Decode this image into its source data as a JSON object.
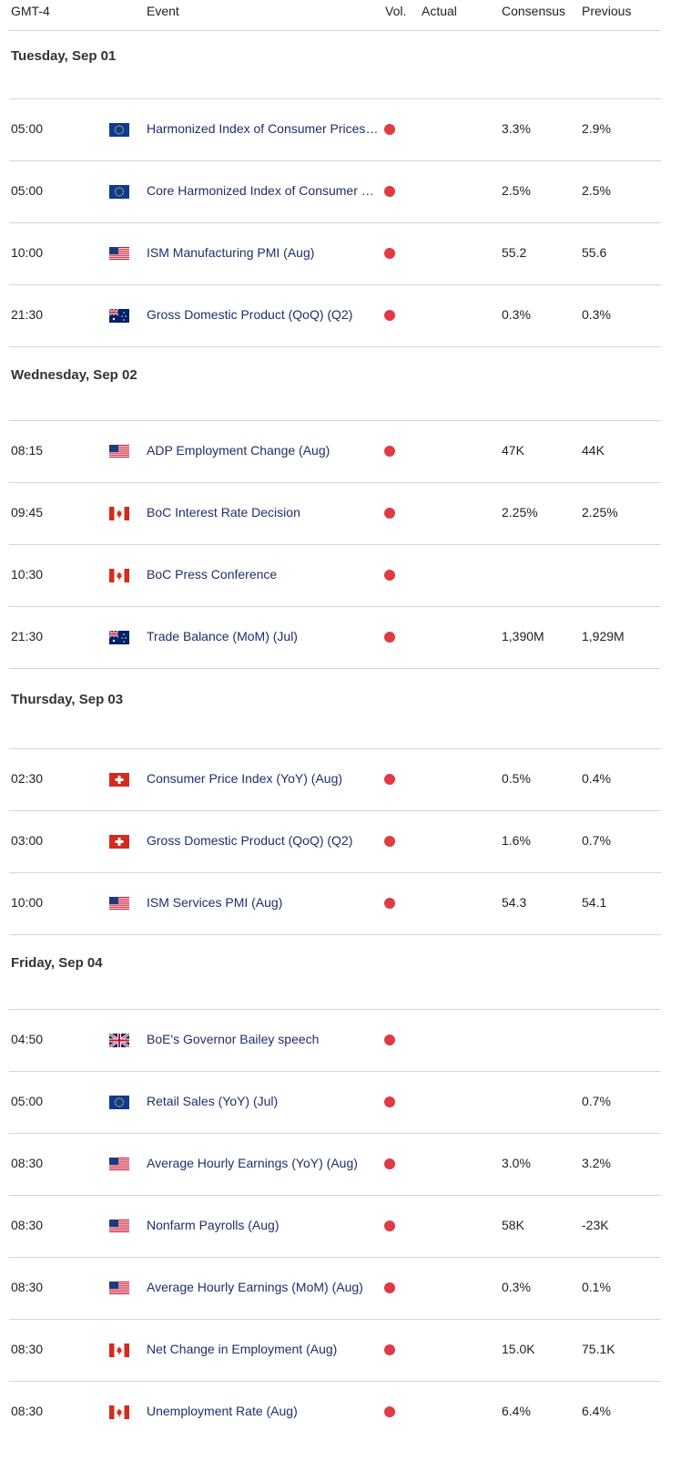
{
  "header": {
    "time_zone": "GMT-4",
    "event": "Event",
    "vol": "Vol.",
    "actual": "Actual",
    "consensus": "Consensus",
    "previous": "Previous"
  },
  "days": [
    {
      "date": "Tuesday, Sep 01",
      "events": [
        {
          "time": "05:00",
          "event": "Harmonized Index of Consumer Prices (YoY) (Aug)",
          "consensus": "3.3%",
          "previous": "2.9%"
        },
        {
          "time": "05:00",
          "event": "Core Harmonized Index of Consumer Prices (YoY) (Aug)",
          "consensus": "2.5%",
          "previous": "2.5%"
        },
        {
          "time": "10:00",
          "event": "ISM Manufacturing PMI (Aug)",
          "consensus": "55.2",
          "previous": "55.6"
        },
        {
          "time": "21:30",
          "event": "Gross Domestic Product (QoQ) (Q2)",
          "consensus": "0.3%",
          "previous": "0.3%"
        }
      ]
    },
    {
      "date": "Wednesday, Sep 02",
      "events": [
        {
          "time": "08:15",
          "event": "ADP Employment Change (Aug)",
          "consensus": "47K",
          "previous": "44K"
        },
        {
          "time": "09:45",
          "event": "BoC Interest Rate Decision",
          "consensus": "2.25%",
          "previous": "2.25%"
        },
        {
          "time": "10:30",
          "event": "BoC Press Conference"
        },
        {
          "time": "21:30",
          "event": "Trade Balance (MoM) (Jul)",
          "consensus": "1,390M",
          "previous": "1,929M"
        }
      ]
    },
    {
      "date": "Thursday, Sep 03",
      "events": [
        {
          "time": "02:30",
          "event": "Consumer Price Index (YoY) (Aug)",
          "consensus": "0.5%",
          "previous": "0.4%"
        },
        {
          "time": "03:00",
          "event": "Gross Domestic Product (QoQ) (Q2)",
          "consensus": "1.6%",
          "previous": "0.7%"
        },
        {
          "time": "10:00",
          "event": "ISM Services PMI (Aug)",
          "consensus": "54.3",
          "previous": "54.1"
        }
      ]
    },
    {
      "date": "Friday, Sep 04",
      "events": [
        {
          "time": "04:50",
          "event": "BoE's Governor Bailey speech"
        },
        {
          "time": "05:00",
          "event": "Retail Sales (YoY) (Jul)",
          "previous": "0.7%"
        },
        {
          "time": "08:30",
          "event": "Average Hourly Earnings (YoY) (Aug)",
          "consensus": "3.0%",
          "previous": "3.2%"
        },
        {
          "time": "08:30",
          "event": "Nonfarm Payrolls (Aug)",
          "consensus": "58K",
          "previous": "-23K"
        },
        {
          "time": "08:30",
          "event": "Average Hourly Earnings (MoM) (Aug)",
          "consensus": "0.3%",
          "previous": "0.1%"
        },
        {
          "time": "08:30",
          "event": "Net Change in Employment (Aug)",
          "consensus": "15.0K",
          "previous": "75.1K"
        },
        {
          "time": "08:30",
          "event": "Unemployment Rate (Aug)",
          "consensus": "6.4%",
          "previous": "6.4%"
        }
      ]
    }
  ]
}
